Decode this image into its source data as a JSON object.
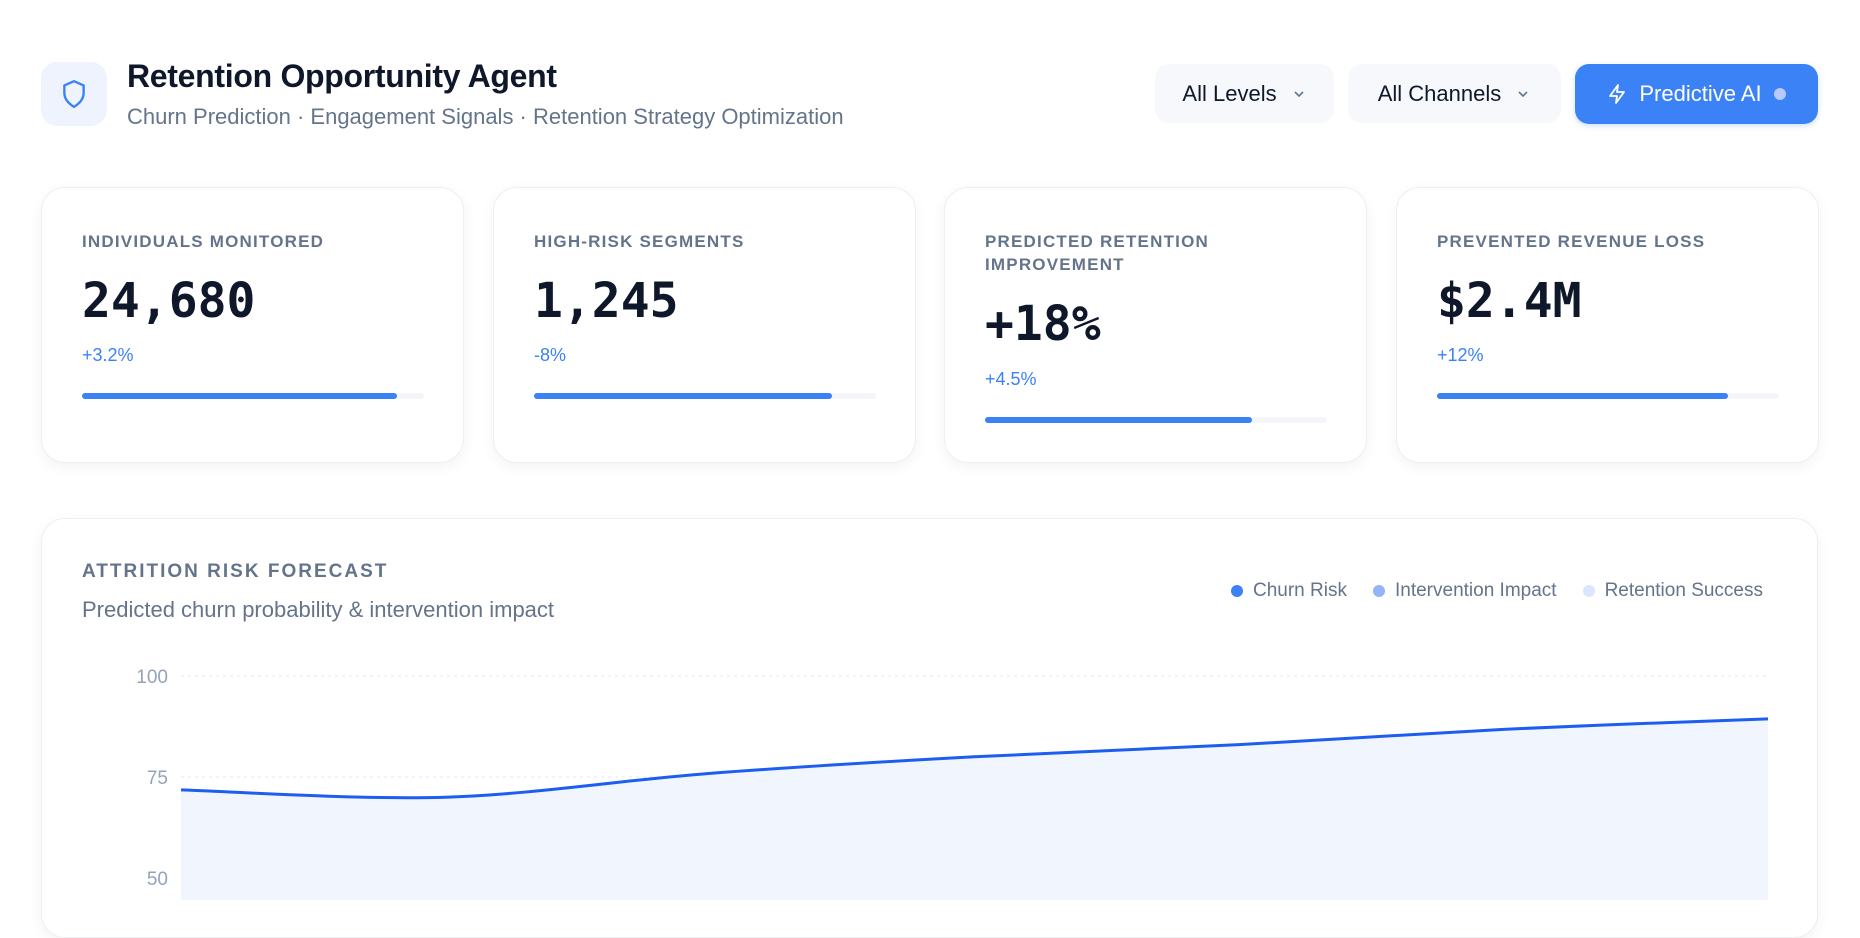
{
  "header": {
    "icon": "shield-icon",
    "title": "Retention Opportunity Agent",
    "subtitle": "Churn Prediction · Engagement Signals · Retention Strategy Optimization",
    "filters": [
      {
        "label": "All Levels",
        "icon": "chevron-down-icon"
      },
      {
        "label": "All Channels",
        "icon": "chevron-down-icon"
      }
    ],
    "ai_button": {
      "label": "Predictive AI",
      "icon": "lightning-icon"
    }
  },
  "kpis": [
    {
      "label": "INDIVIDUALS MONITORED",
      "value": "24,680",
      "delta": "+3.2%",
      "progress": 0.92
    },
    {
      "label": "HIGH-RISK SEGMENTS",
      "value": "1,245",
      "delta": "-8%",
      "progress": 0.87
    },
    {
      "label": "PREDICTED RETENTION IMPROVEMENT",
      "value": "+18%",
      "delta": "+4.5%",
      "progress": 0.78
    },
    {
      "label": "PREVENTED REVENUE LOSS",
      "value": "$2.4M",
      "delta": "+12%",
      "progress": 0.85
    }
  ],
  "colors": {
    "accent": "#3b82f6",
    "line": "#1d5ef0",
    "area": "#f1f5fe"
  },
  "chart_data": {
    "type": "area",
    "title": "ATTRITION RISK FORECAST",
    "subtitle": "Predicted churn probability & intervention impact",
    "legend": [
      {
        "name": "Churn Risk",
        "color": "#3b82f6"
      },
      {
        "name": "Intervention Impact",
        "color": "#93b4f8"
      },
      {
        "name": "Retention Success",
        "color": "#dbe5fd"
      }
    ],
    "legend_position": "top-right",
    "yticks": [
      "100",
      "75",
      "50"
    ],
    "ylim": [
      50,
      100
    ],
    "grid": true,
    "series": [
      {
        "name": "Churn Risk",
        "values": [
          71.8,
          70.0,
          75.9,
          80.0,
          83.0,
          86.8,
          89.4
        ]
      }
    ]
  }
}
